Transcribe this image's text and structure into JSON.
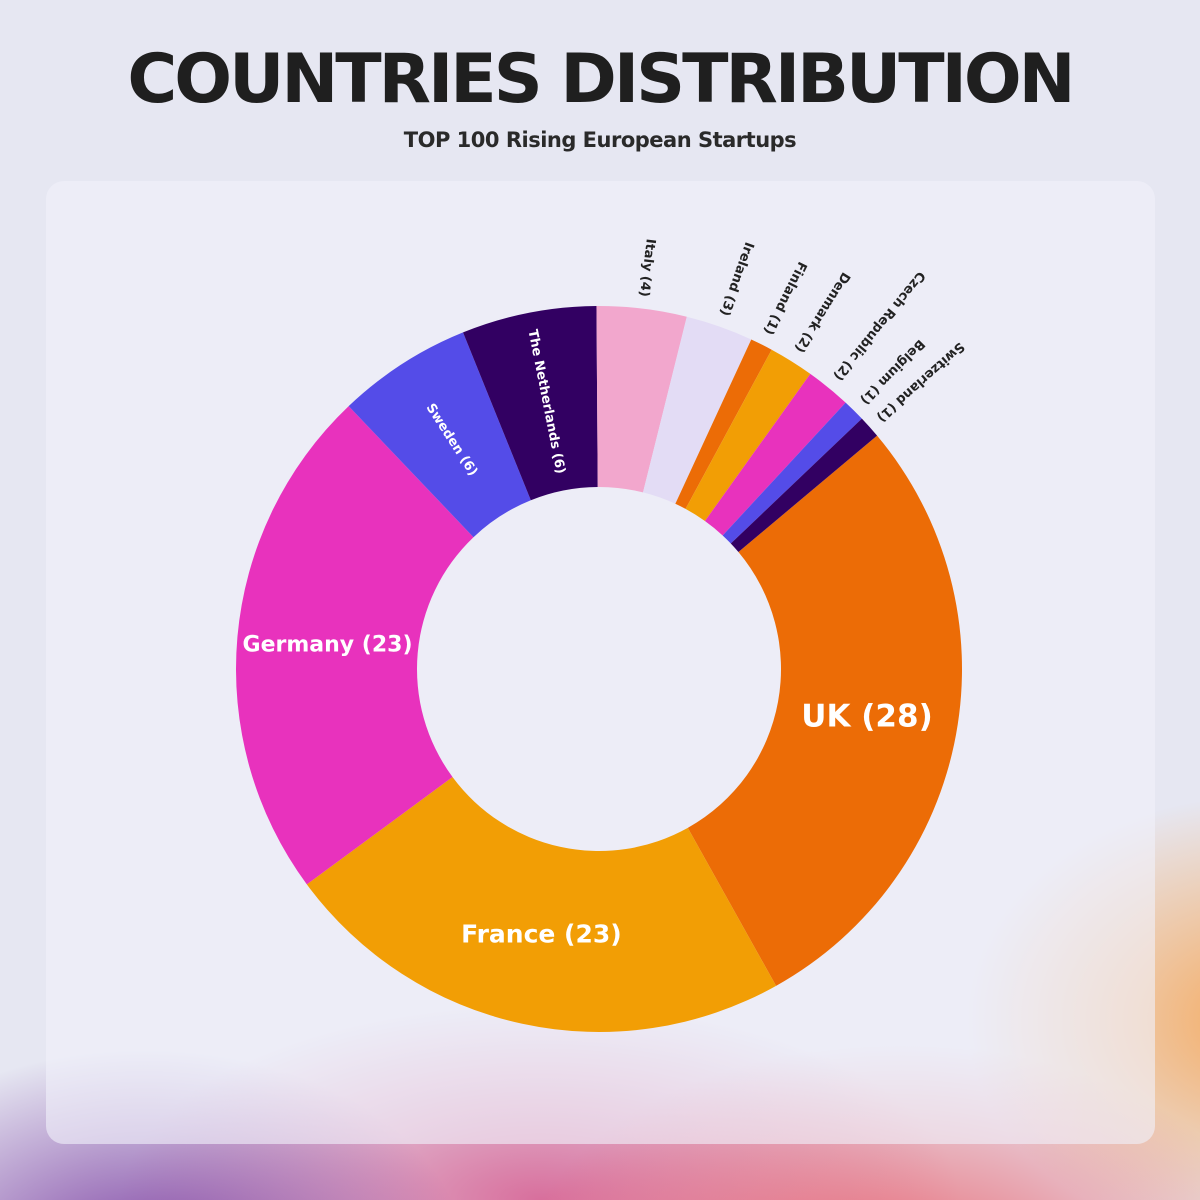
{
  "title": "COUNTRIES DISTRIBUTION",
  "subtitle": "TOP 100 Rising European Startups",
  "chart_data": {
    "type": "pie",
    "variant": "donut",
    "title": "COUNTRIES DISTRIBUTION",
    "subtitle": "TOP 100 Rising European Startups",
    "total": 100,
    "slices": [
      {
        "label": "UK (28)",
        "name": "UK",
        "value": 28,
        "color": "#ec6c06"
      },
      {
        "label": "France (23)",
        "name": "France",
        "value": 23,
        "color": "#f29e05"
      },
      {
        "label": "Germany (23)",
        "name": "Germany",
        "value": 23,
        "color": "#e832bd"
      },
      {
        "label": "Sweden (6)",
        "name": "Sweden",
        "value": 6,
        "color": "#544ce8"
      },
      {
        "label": "The Netherlands (6)",
        "name": "The Netherlands",
        "value": 6,
        "color": "#320062"
      },
      {
        "label": "Italy (4)",
        "name": "Italy",
        "value": 4,
        "color": "#f2a7cd"
      },
      {
        "label": "Ireland (3)",
        "name": "Ireland",
        "value": 3,
        "color": "#e3dcf5"
      },
      {
        "label": "Finland (1)",
        "name": "Finland",
        "value": 1,
        "color": "#ec6c06"
      },
      {
        "label": "Denmark (2)",
        "name": "Denmark",
        "value": 2,
        "color": "#f29e05"
      },
      {
        "label": "Czech Republic (2)",
        "name": "Czech Republic",
        "value": 2,
        "color": "#e832bd"
      },
      {
        "label": "Belgium (1)",
        "name": "Belgium",
        "value": 1,
        "color": "#544ce8"
      },
      {
        "label": "Switzerland (1)",
        "name": "Switzerland",
        "value": 1,
        "color": "#320062"
      }
    ]
  }
}
